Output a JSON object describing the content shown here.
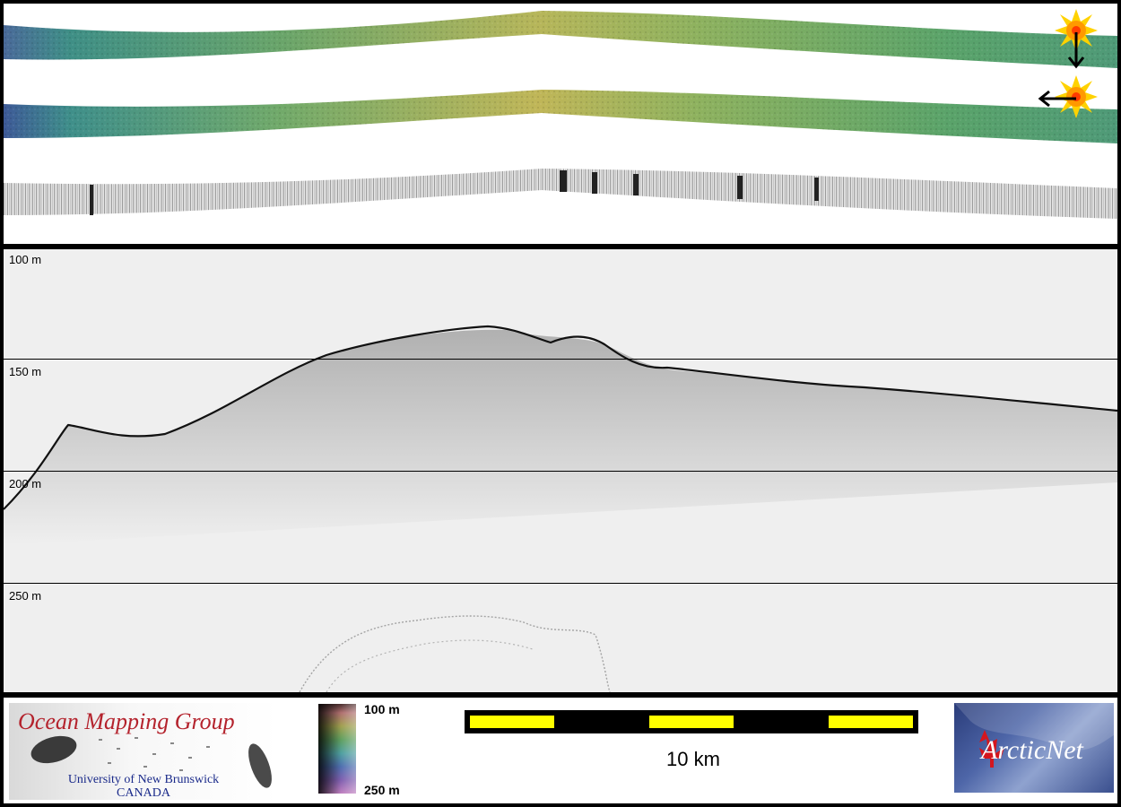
{
  "profile": {
    "depth_labels": [
      "100 m",
      "150 m",
      "200 m",
      "250 m"
    ]
  },
  "footer": {
    "org_title": "Ocean Mapping Group",
    "org_university": "University of New Brunswick",
    "org_country": "CANADA",
    "colorbar_top_label": "100 m",
    "colorbar_bottom_label": "250 m",
    "scale_label": "10 km",
    "partner_logo_text": "ArcticNet"
  },
  "colors": {
    "scale_yellow": "#ffff00",
    "omg_red": "#b4232d",
    "omg_blue": "#1a2a8a",
    "arcticnet_blue": "#2a3c7a",
    "maple_red": "#d4161e",
    "sun_orange": "#ff9900",
    "sun_yellow": "#ffd200"
  },
  "icons": [
    "sun-illumination-icon",
    "down-arrow-icon",
    "left-arrow-icon",
    "maple-leaf-icon"
  ]
}
